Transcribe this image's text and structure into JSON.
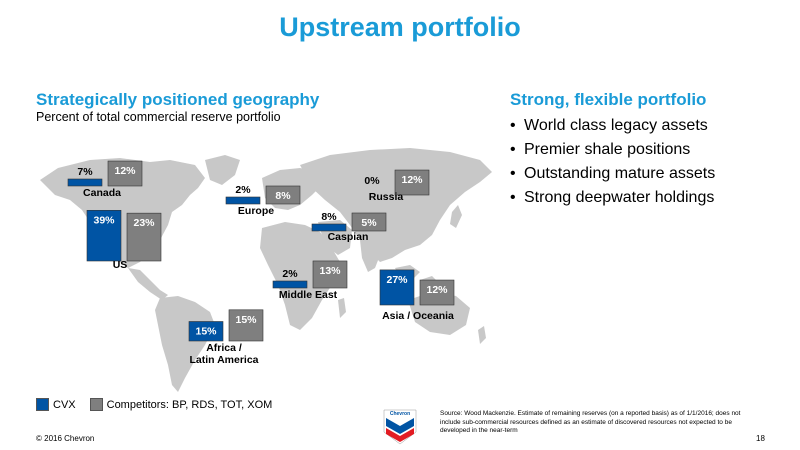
{
  "title": "Upstream portfolio",
  "left_heading": "Strategically positioned geography",
  "left_subheading": "Percent of total commercial reserve portfolio",
  "right_heading": "Strong, flexible portfolio",
  "bullets": [
    "World class legacy assets",
    "Premier shale positions",
    "Outstanding mature assets",
    "Strong deepwater holdings"
  ],
  "legend": {
    "cvx": "CVX",
    "competitors": "Competitors: BP, RDS, TOT, XOM"
  },
  "colors": {
    "cvx": "#0054a4",
    "competitors": "#7f7f7f",
    "map": "#c8c8c8",
    "accent": "#1a9bd7"
  },
  "footer": {
    "copyright": "© 2016 Chevron",
    "page": "18",
    "source": "Source:  Wood Mackenzie.  Estimate of remaining reserves (on a reported basis) as of 1/1/2016; does not include sub-commercial resources defined as an estimate of discovered resources not expected to be developed in the near-term"
  },
  "logo_text": "Chevron",
  "chart_data": {
    "type": "bar",
    "categories": [
      "Canada",
      "Europe",
      "Russia",
      "US",
      "Caspian",
      "Middle East",
      "Asia / Oceania",
      "Africa / Latin America"
    ],
    "series": [
      {
        "name": "CVX",
        "values": [
          7,
          2,
          0,
          39,
          8,
          2,
          27,
          15
        ]
      },
      {
        "name": "Competitors: BP, RDS, TOT, XOM",
        "values": [
          12,
          8,
          12,
          23,
          5,
          13,
          12,
          15
        ]
      }
    ],
    "data_labels": {
      "CVX": [
        "7%",
        "2%",
        "0%",
        "39%",
        "8%",
        "2%",
        "27%",
        "15%"
      ],
      "Competitors: BP, RDS, TOT, XOM": [
        "12%",
        "8%",
        "12%",
        "23%",
        "5%",
        "13%",
        "12%",
        "15%"
      ]
    },
    "region_labels": [
      "Canada",
      "Europe",
      "Russia",
      "US",
      "Caspian",
      "Middle East",
      "Asia / Oceania",
      "Africa /\nLatin America"
    ]
  }
}
